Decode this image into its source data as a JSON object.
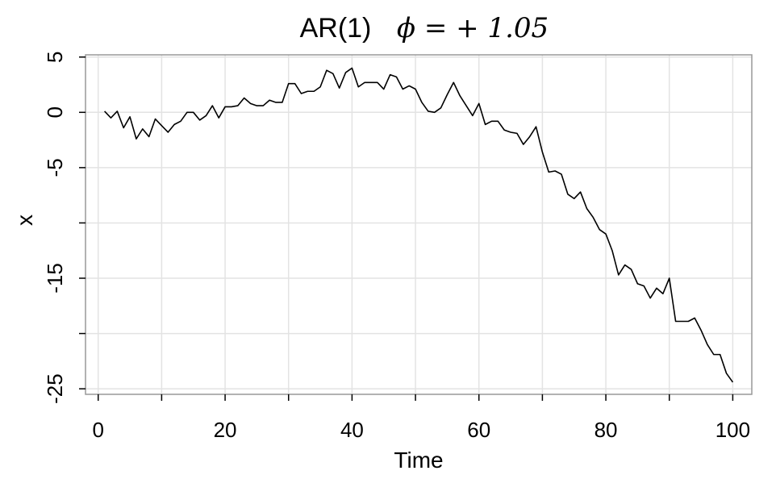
{
  "chart_data": {
    "type": "line",
    "title": "AR(1)",
    "title_parameter": "ϕ = + 1.05",
    "xlabel": "Time",
    "ylabel": "x",
    "xlim": [
      -2,
      103
    ],
    "ylim": [
      -25.5,
      5.2
    ],
    "x_ticks": [
      0,
      20,
      40,
      60,
      80,
      100
    ],
    "x_tick_labels": [
      "0",
      "20",
      "40",
      "60",
      "80",
      "100"
    ],
    "x_minor_ticks": [
      10,
      30,
      50,
      70,
      90
    ],
    "y_ticks": [
      5,
      0,
      -5,
      -10,
      -15,
      -20,
      -25
    ],
    "y_tick_labels": [
      "5",
      "0",
      "-5",
      "",
      "-15",
      "",
      "-25"
    ],
    "grid": true,
    "series": [
      {
        "color": "#000000",
        "x": [
          1,
          2,
          3,
          4,
          5,
          6,
          7,
          8,
          9,
          10,
          11,
          12,
          13,
          14,
          15,
          16,
          17,
          18,
          19,
          20,
          21,
          22,
          23,
          24,
          25,
          26,
          27,
          28,
          29,
          30,
          31,
          32,
          33,
          34,
          35,
          36,
          37,
          38,
          39,
          40,
          41,
          42,
          43,
          44,
          45,
          46,
          47,
          48,
          49,
          50,
          51,
          52,
          53,
          54,
          55,
          56,
          57,
          58,
          59,
          60,
          61,
          62,
          63,
          64,
          65,
          66,
          67,
          68,
          69,
          70,
          71,
          72,
          73,
          74,
          75,
          76,
          77,
          78,
          79,
          80,
          81,
          82,
          83,
          84,
          85,
          86,
          87,
          88,
          89,
          90,
          91,
          92,
          93,
          94,
          95,
          96,
          97,
          98,
          99,
          100
        ],
        "y": [
          0.1,
          -0.5,
          0.1,
          -1.4,
          -0.4,
          -2.4,
          -1.5,
          -2.2,
          -0.6,
          -1.2,
          -1.8,
          -1.1,
          -0.8,
          0.0,
          0.0,
          -0.7,
          -0.3,
          0.6,
          -0.5,
          0.5,
          0.5,
          0.6,
          1.3,
          0.8,
          0.6,
          0.6,
          1.1,
          0.9,
          0.9,
          2.6,
          2.6,
          1.7,
          1.9,
          1.9,
          2.3,
          3.8,
          3.5,
          2.2,
          3.6,
          4.0,
          2.3,
          2.7,
          2.7,
          2.7,
          2.1,
          3.4,
          3.2,
          2.1,
          2.4,
          2.1,
          0.9,
          0.1,
          0.0,
          0.4,
          1.6,
          2.7,
          1.5,
          0.6,
          -0.3,
          0.8,
          -1.1,
          -0.8,
          -0.8,
          -1.6,
          -1.8,
          -1.9,
          -2.9,
          -2.2,
          -1.3,
          -3.6,
          -5.4,
          -5.3,
          -5.6,
          -7.4,
          -7.8,
          -7.2,
          -8.7,
          -9.5,
          -10.6,
          -11.0,
          -12.5,
          -14.7,
          -13.8,
          -14.2,
          -15.5,
          -15.7,
          -16.8,
          -15.9,
          -16.4,
          -15.0,
          -18.9,
          -18.9,
          -18.9,
          -18.6,
          -19.7,
          -21.0,
          -21.9,
          -21.9,
          -23.6,
          -24.4
        ]
      }
    ]
  }
}
